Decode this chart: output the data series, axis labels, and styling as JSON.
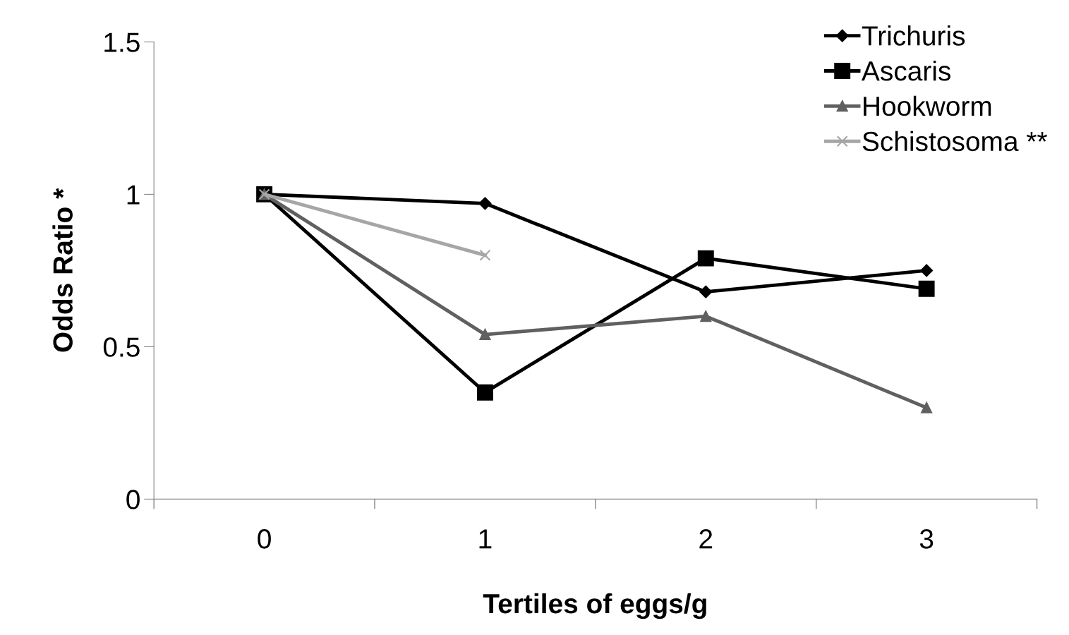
{
  "chart_data": {
    "type": "line",
    "xlabel": "Tertiles of eggs/g",
    "ylabel": "Odds Ratio *",
    "categories": [
      "0",
      "1",
      "2",
      "3"
    ],
    "series": [
      {
        "name": "Trichuris",
        "color": "#000000",
        "marker": "diamond",
        "values": [
          1,
          0.97,
          0.68,
          0.75
        ]
      },
      {
        "name": "Ascaris",
        "color": "#000000",
        "marker": "square",
        "values": [
          1,
          0.35,
          0.79,
          0.69
        ]
      },
      {
        "name": "Hookworm",
        "color": "#606060",
        "marker": "triangle",
        "values": [
          1,
          0.54,
          0.6,
          0.3
        ]
      },
      {
        "name": "Schistosoma **",
        "color": "#a6a6a6",
        "marker": "cross",
        "values": [
          1,
          0.8,
          null,
          null
        ]
      }
    ],
    "ylim": [
      0,
      1.5
    ],
    "yticks": [
      0,
      0.5,
      1,
      1.5
    ],
    "grid": false,
    "legend": "top right"
  }
}
